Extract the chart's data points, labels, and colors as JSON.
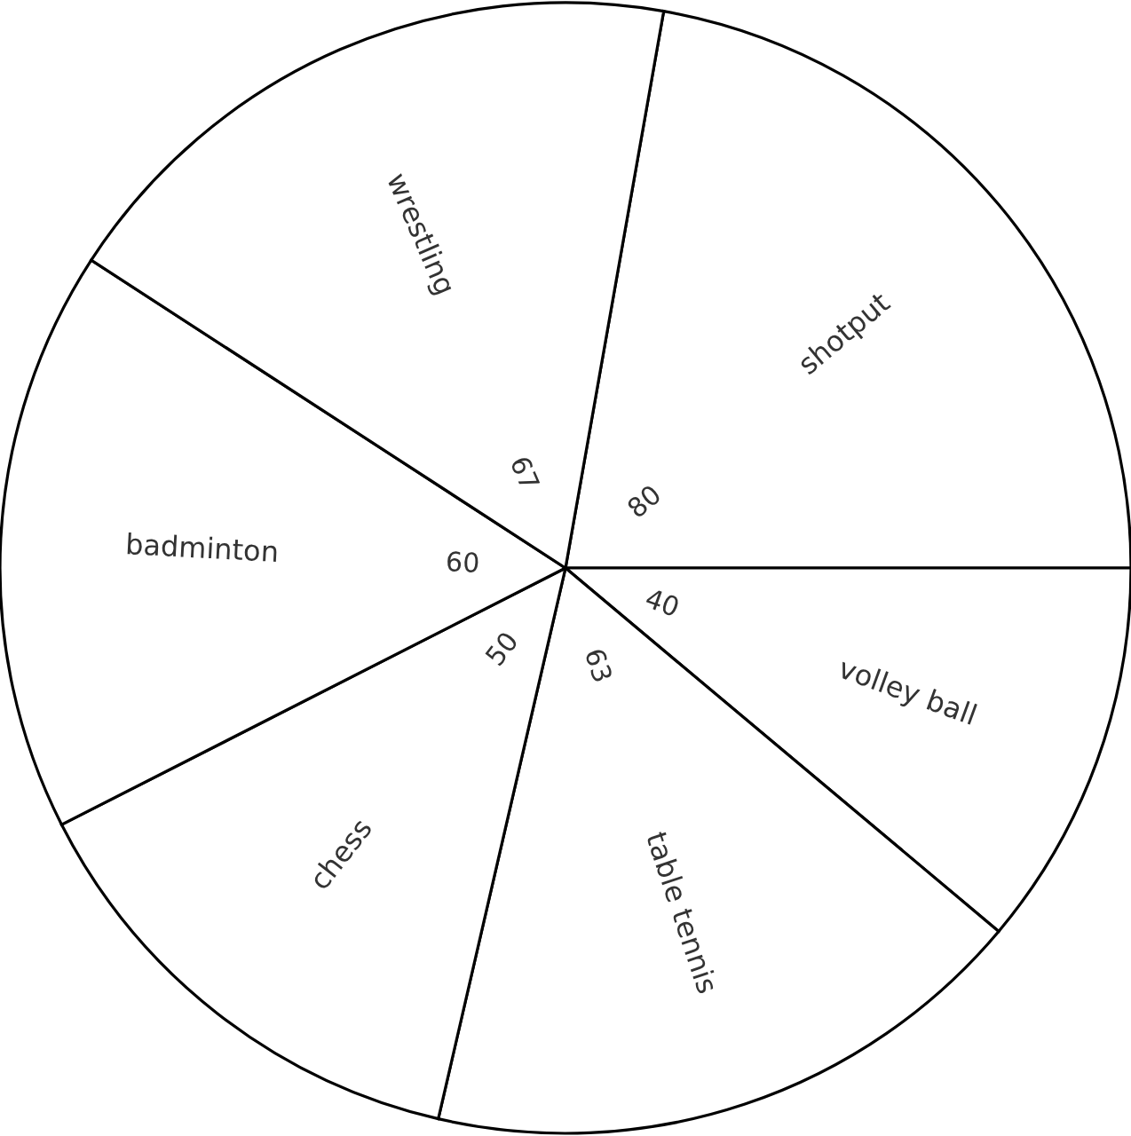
{
  "chart_data": {
    "type": "pie",
    "categories": [
      "shotput",
      "volley ball",
      "table tennis",
      "chess",
      "badminton",
      "wrestling"
    ],
    "values": [
      80,
      40,
      63,
      50,
      60,
      67
    ],
    "colors": [
      "#ffffff",
      "#ffffff",
      "#ffffff",
      "#ffffff",
      "#ffffff",
      "#ffffff"
    ],
    "data_labels": true
  }
}
